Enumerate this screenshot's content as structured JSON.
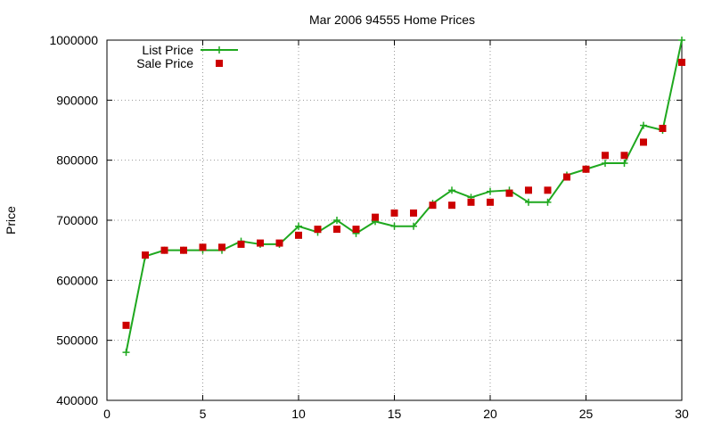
{
  "chart_data": {
    "type": "line",
    "title": "Mar 2006 94555 Home Prices",
    "xlabel": "",
    "ylabel": "Price",
    "xlim": [
      0,
      30
    ],
    "ylim": [
      400000,
      1000000
    ],
    "xticks": [
      0,
      5,
      10,
      15,
      20,
      25,
      30
    ],
    "yticks": [
      400000,
      500000,
      600000,
      700000,
      800000,
      900000,
      1000000
    ],
    "grid": true,
    "legend_position": "top-left",
    "series": [
      {
        "name": "List Price",
        "style": "line-points",
        "color": "#1fa81f",
        "x": [
          1,
          2,
          3,
          4,
          5,
          6,
          7,
          8,
          9,
          10,
          11,
          12,
          13,
          14,
          15,
          16,
          17,
          18,
          19,
          20,
          21,
          22,
          23,
          24,
          25,
          26,
          27,
          28,
          29,
          30
        ],
        "y": [
          480000,
          640000,
          650000,
          650000,
          650000,
          650000,
          665000,
          660000,
          660000,
          690000,
          680000,
          700000,
          678000,
          698000,
          690000,
          690000,
          728000,
          750000,
          738000,
          748000,
          750000,
          730000,
          730000,
          775000,
          785000,
          795000,
          795000,
          858000,
          850000,
          1000000
        ]
      },
      {
        "name": "Sale Price",
        "style": "points",
        "color": "#cc0000",
        "x": [
          1,
          2,
          3,
          4,
          5,
          6,
          7,
          8,
          9,
          10,
          11,
          12,
          13,
          14,
          15,
          16,
          17,
          18,
          19,
          20,
          21,
          22,
          23,
          24,
          25,
          26,
          27,
          28,
          29,
          30
        ],
        "y": [
          525000,
          642000,
          650000,
          650000,
          655000,
          655000,
          660000,
          662000,
          662000,
          675000,
          685000,
          685000,
          685000,
          705000,
          712000,
          712000,
          725000,
          725000,
          730000,
          730000,
          745000,
          750000,
          750000,
          772000,
          785000,
          808000,
          808000,
          830000,
          853000,
          963000
        ]
      }
    ]
  }
}
